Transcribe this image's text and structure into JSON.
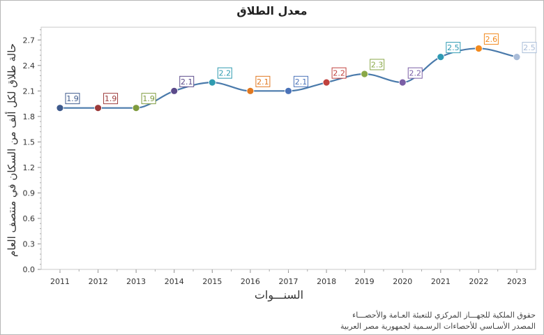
{
  "chart_data": {
    "type": "line",
    "title": "معدل الطلاق",
    "xlabel": "السنـــوات",
    "ylabel": "حالة طلاق لكل ألف من السكان في منتصف العام",
    "ylim": [
      0,
      2.85
    ],
    "yticks": [
      0.0,
      0.3,
      0.6,
      0.9,
      1.2,
      1.5,
      1.8,
      2.1,
      2.4,
      2.7
    ],
    "ytick_labels": [
      "0.0",
      "0.3",
      "0.6",
      "0.9",
      "1.2",
      "1.5",
      "1.8",
      "2.1",
      "2.4",
      "2.7"
    ],
    "categories": [
      "2011",
      "2012",
      "2013",
      "2014",
      "2015",
      "2016",
      "2017",
      "2018",
      "2019",
      "2020",
      "2021",
      "2022",
      "2023"
    ],
    "values": [
      1.9,
      1.9,
      1.9,
      2.1,
      2.2,
      2.1,
      2.1,
      2.2,
      2.3,
      2.2,
      2.5,
      2.6,
      2.5
    ],
    "value_labels": [
      "1.9",
      "1.9",
      "1.9",
      "2.1",
      "2.2",
      "2.1",
      "2.1",
      "2.2",
      "2.3",
      "2.2",
      "2.5",
      "2.6",
      "2.5"
    ],
    "point_colors": [
      "#3e5a8c",
      "#9c3a3a",
      "#7f9b3e",
      "#5b4a8a",
      "#2f9bb0",
      "#e07820",
      "#4a72b8",
      "#c0423e",
      "#8aa848",
      "#7a5fa6",
      "#2e9ab4",
      "#f28a1f",
      "#a9bcd8"
    ],
    "line_color": "#4a7aab",
    "grid": false
  },
  "footer": {
    "copyright": "حقوق الملكية للجهـــاز المركزي للتعبئة العـامة والأحصـــاء",
    "source": "المصدر الأسـاسي للأحصاءات الرسـمية لجمهورية مصر العربية"
  }
}
